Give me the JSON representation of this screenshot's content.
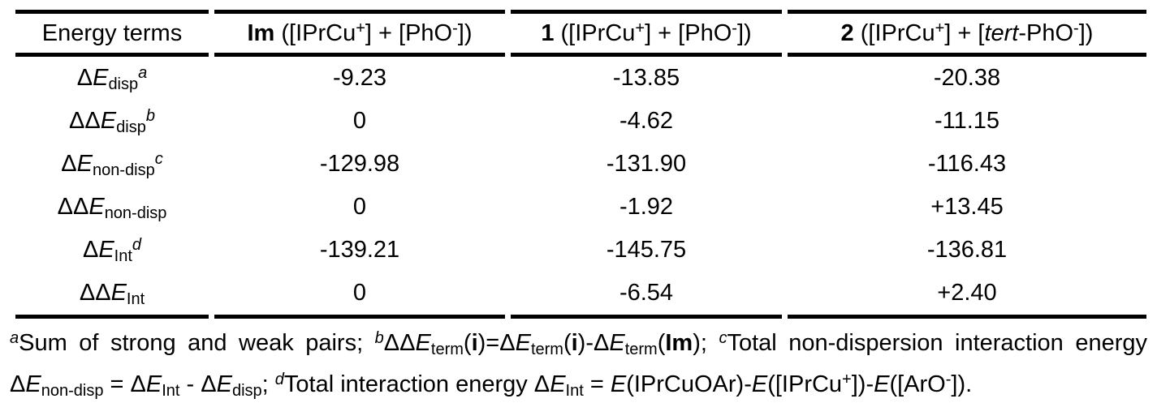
{
  "page": {
    "background_color": "#ffffff",
    "text_color": "#000000",
    "rule_color": "#000000"
  },
  "table": {
    "columns": [
      {
        "label": [
          {
            "t": "Energy terms"
          }
        ]
      },
      {
        "label": [
          {
            "t": "Im",
            "s": "b"
          },
          {
            "t": " ([IPrCu"
          },
          {
            "t": "+",
            "s": "sup"
          },
          {
            "t": "] + [PhO"
          },
          {
            "t": "-",
            "s": "sup"
          },
          {
            "t": "])"
          }
        ]
      },
      {
        "label": [
          {
            "t": "1",
            "s": "b"
          },
          {
            "t": " ([IPrCu"
          },
          {
            "t": "+",
            "s": "sup"
          },
          {
            "t": "] + [PhO"
          },
          {
            "t": "-",
            "s": "sup"
          },
          {
            "t": "])"
          }
        ]
      },
      {
        "label": [
          {
            "t": "2",
            "s": "b"
          },
          {
            "t": " ([IPrCu"
          },
          {
            "t": "+",
            "s": "sup"
          },
          {
            "t": "] + ["
          },
          {
            "t": "tert",
            "s": "i"
          },
          {
            "t": "-PhO"
          },
          {
            "t": "-",
            "s": "sup"
          },
          {
            "t": "])"
          }
        ]
      }
    ],
    "rows": [
      {
        "label": [
          {
            "t": "Δ"
          },
          {
            "t": "E",
            "s": "i"
          },
          {
            "t": "disp",
            "s": "sub"
          },
          {
            "t": "a",
            "s": "sup i"
          }
        ],
        "values": [
          "-9.23",
          "-13.85",
          "-20.38"
        ]
      },
      {
        "label": [
          {
            "t": "ΔΔ"
          },
          {
            "t": "E",
            "s": "i"
          },
          {
            "t": "disp",
            "s": "sub"
          },
          {
            "t": "b",
            "s": "sup i"
          }
        ],
        "values": [
          "0",
          "-4.62",
          "-11.15"
        ]
      },
      {
        "label": [
          {
            "t": "Δ"
          },
          {
            "t": "E",
            "s": "i"
          },
          {
            "t": "non-disp",
            "s": "sub"
          },
          {
            "t": "c",
            "s": "sup i"
          }
        ],
        "values": [
          "-129.98",
          "-131.90",
          "-116.43"
        ]
      },
      {
        "label": [
          {
            "t": "ΔΔ"
          },
          {
            "t": "E",
            "s": "i"
          },
          {
            "t": "non-disp",
            "s": "sub"
          }
        ],
        "values": [
          "0",
          "-1.92",
          "+13.45"
        ]
      },
      {
        "label": [
          {
            "t": "Δ"
          },
          {
            "t": "E",
            "s": "i"
          },
          {
            "t": "Int",
            "s": "sub"
          },
          {
            "t": "d",
            "s": "sup i"
          }
        ],
        "values": [
          "-139.21",
          "-145.75",
          "-136.81"
        ]
      },
      {
        "label": [
          {
            "t": "ΔΔ"
          },
          {
            "t": "E",
            "s": "i"
          },
          {
            "t": "Int",
            "s": "sub"
          }
        ],
        "values": [
          "0",
          "-6.54",
          "+2.40"
        ]
      }
    ]
  },
  "footnote": [
    {
      "t": "a",
      "s": "sup i"
    },
    {
      "t": "Sum of strong and weak pairs; "
    },
    {
      "t": "b",
      "s": "sup i"
    },
    {
      "t": "ΔΔ"
    },
    {
      "t": "E",
      "s": "i"
    },
    {
      "t": "term",
      "s": "sub"
    },
    {
      "t": "("
    },
    {
      "t": "i",
      "s": "b"
    },
    {
      "t": ")=Δ"
    },
    {
      "t": "E",
      "s": "i"
    },
    {
      "t": "term",
      "s": "sub"
    },
    {
      "t": "("
    },
    {
      "t": "i",
      "s": "b"
    },
    {
      "t": ")-Δ"
    },
    {
      "t": "E",
      "s": "i"
    },
    {
      "t": "term",
      "s": "sub"
    },
    {
      "t": "("
    },
    {
      "t": "Im",
      "s": "b"
    },
    {
      "t": "); "
    },
    {
      "t": "c",
      "s": "sup i"
    },
    {
      "t": "Total non-dispersion interaction energy Δ"
    },
    {
      "t": "E",
      "s": "i"
    },
    {
      "t": "non-disp",
      "s": "sub"
    },
    {
      "t": " = Δ"
    },
    {
      "t": "E",
      "s": "i"
    },
    {
      "t": "Int",
      "s": "sub"
    },
    {
      "t": " - Δ"
    },
    {
      "t": "E",
      "s": "i"
    },
    {
      "t": "disp",
      "s": "sub"
    },
    {
      "t": "; "
    },
    {
      "t": "d",
      "s": "sup i"
    },
    {
      "t": "Total interaction energy Δ"
    },
    {
      "t": "E",
      "s": "i"
    },
    {
      "t": "Int",
      "s": "sub"
    },
    {
      "t": " = "
    },
    {
      "t": "E",
      "s": "i"
    },
    {
      "t": "(IPrCuOAr)-"
    },
    {
      "t": "E",
      "s": "i"
    },
    {
      "t": "([IPrCu"
    },
    {
      "t": "+",
      "s": "sup"
    },
    {
      "t": "])-"
    },
    {
      "t": "E",
      "s": "i"
    },
    {
      "t": "([ArO"
    },
    {
      "t": "-",
      "s": "sup"
    },
    {
      "t": "])."
    }
  ]
}
